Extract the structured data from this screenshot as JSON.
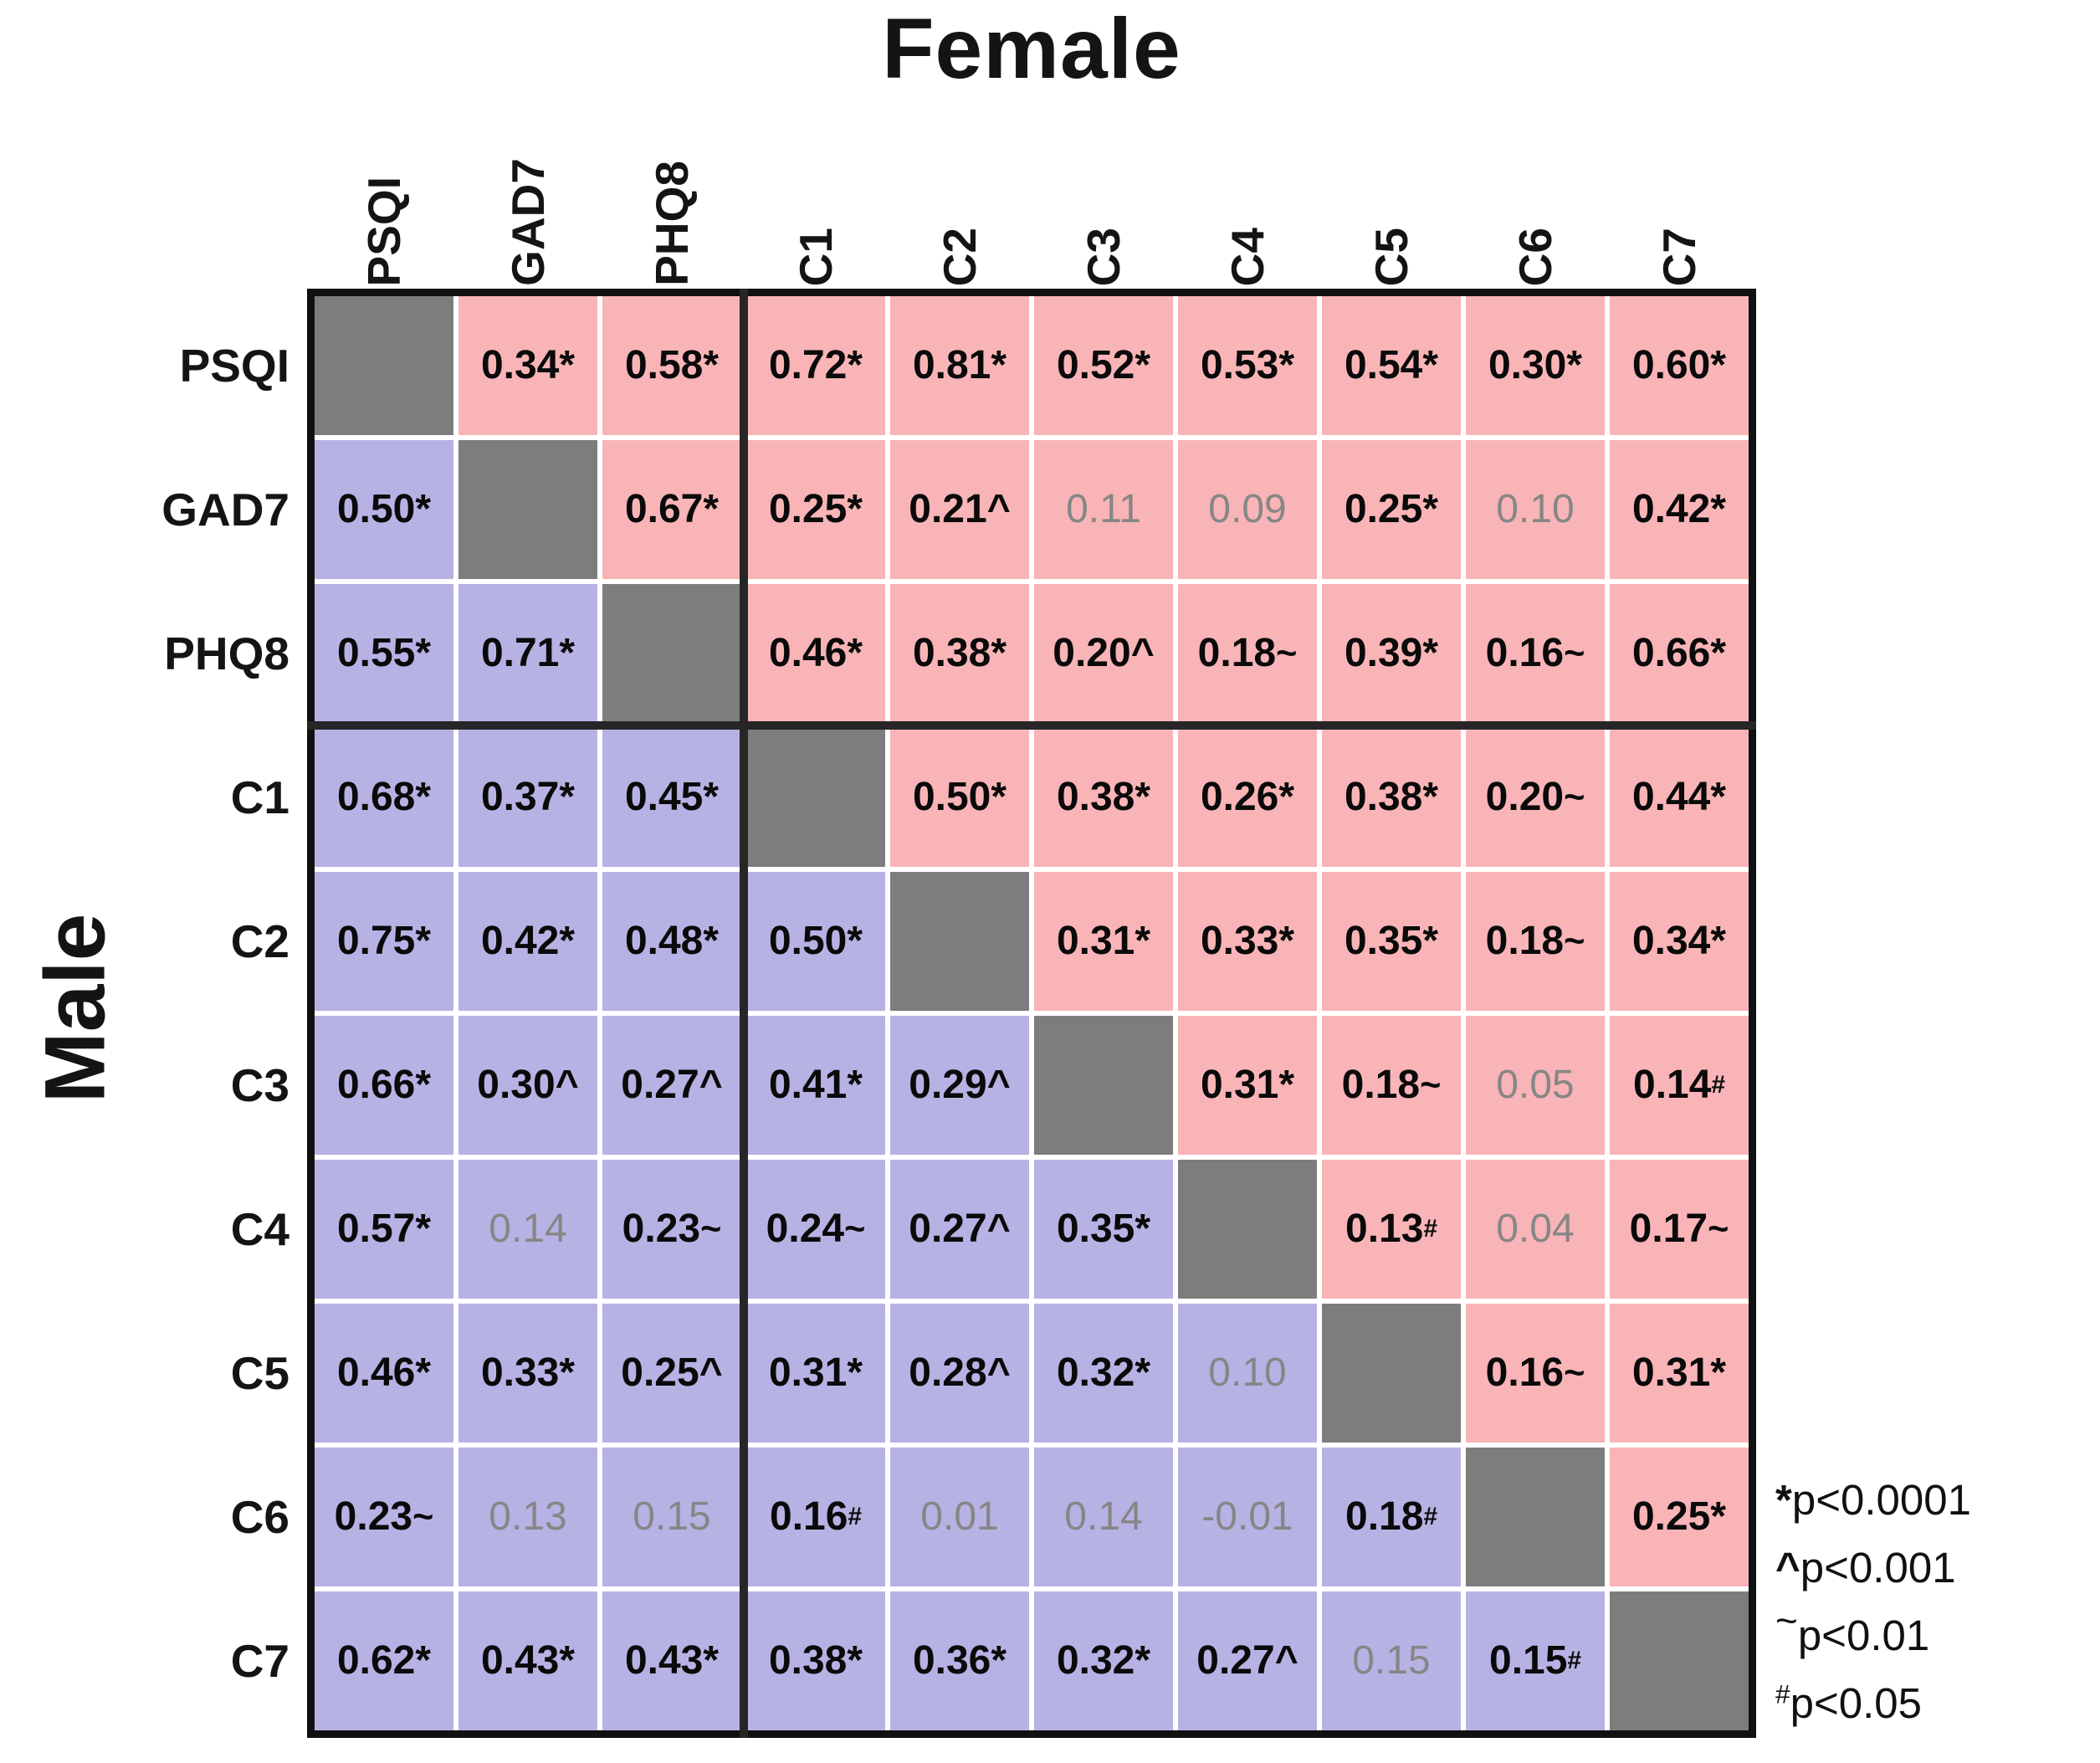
{
  "titles": {
    "top": "Female",
    "left": "Male"
  },
  "colors": {
    "female_cell": "#f8b4b7",
    "male_cell": "#b7b2e4",
    "diagonal_cell": "#7d7d7d",
    "significant_text": "#0a0a0a",
    "nonsignificant_text": "#868686",
    "grid_line": "#ffffff",
    "border": "#111111"
  },
  "legend": {
    "items": [
      {
        "symbol": "*",
        "text": "p<0.0001"
      },
      {
        "symbol": "^",
        "text": "p<0.001"
      },
      {
        "symbol": "~",
        "text": "p<0.01"
      },
      {
        "symbol": "#",
        "text": "p<0.05"
      }
    ]
  },
  "chart_data": {
    "type": "heatmap",
    "title": "Correlation matrix",
    "upper_triangle_group": "Female",
    "lower_triangle_group": "Male",
    "labels": [
      "PSQI",
      "GAD7",
      "PHQ8",
      "C1",
      "C2",
      "C3",
      "C4",
      "C5",
      "C6",
      "C7"
    ],
    "significance_key": {
      "*": "p<0.0001",
      "^": "p<0.001",
      "~": "p<0.01",
      "#": "p<0.05"
    },
    "matrix": [
      [
        null,
        {
          "v": "0.34",
          "s": "*"
        },
        {
          "v": "0.58",
          "s": "*"
        },
        {
          "v": "0.72",
          "s": "*"
        },
        {
          "v": "0.81",
          "s": "*"
        },
        {
          "v": "0.52",
          "s": "*"
        },
        {
          "v": "0.53",
          "s": "*"
        },
        {
          "v": "0.54",
          "s": "*"
        },
        {
          "v": "0.30",
          "s": "*"
        },
        {
          "v": "0.60",
          "s": "*"
        }
      ],
      [
        {
          "v": "0.50",
          "s": "*"
        },
        null,
        {
          "v": "0.67",
          "s": "*"
        },
        {
          "v": "0.25",
          "s": "*"
        },
        {
          "v": "0.21",
          "s": "^"
        },
        {
          "v": "0.11",
          "s": ""
        },
        {
          "v": "0.09",
          "s": ""
        },
        {
          "v": "0.25",
          "s": "*"
        },
        {
          "v": "0.10",
          "s": ""
        },
        {
          "v": "0.42",
          "s": "*"
        }
      ],
      [
        {
          "v": "0.55",
          "s": "*"
        },
        {
          "v": "0.71",
          "s": "*"
        },
        null,
        {
          "v": "0.46",
          "s": "*"
        },
        {
          "v": "0.38",
          "s": "*"
        },
        {
          "v": "0.20",
          "s": "^"
        },
        {
          "v": "0.18",
          "s": "~"
        },
        {
          "v": "0.39",
          "s": "*"
        },
        {
          "v": "0.16",
          "s": "~"
        },
        {
          "v": "0.66",
          "s": "*"
        }
      ],
      [
        {
          "v": "0.68",
          "s": "*"
        },
        {
          "v": "0.37",
          "s": "*"
        },
        {
          "v": "0.45",
          "s": "*"
        },
        null,
        {
          "v": "0.50",
          "s": "*"
        },
        {
          "v": "0.38",
          "s": "*"
        },
        {
          "v": "0.26",
          "s": "*"
        },
        {
          "v": "0.38",
          "s": "*"
        },
        {
          "v": "0.20",
          "s": "~"
        },
        {
          "v": "0.44",
          "s": "*"
        }
      ],
      [
        {
          "v": "0.75",
          "s": "*"
        },
        {
          "v": "0.42",
          "s": "*"
        },
        {
          "v": "0.48",
          "s": "*"
        },
        {
          "v": "0.50",
          "s": "*"
        },
        null,
        {
          "v": "0.31",
          "s": "*"
        },
        {
          "v": "0.33",
          "s": "*"
        },
        {
          "v": "0.35",
          "s": "*"
        },
        {
          "v": "0.18",
          "s": "~"
        },
        {
          "v": "0.34",
          "s": "*"
        }
      ],
      [
        {
          "v": "0.66",
          "s": "*"
        },
        {
          "v": "0.30",
          "s": "^"
        },
        {
          "v": "0.27",
          "s": "^"
        },
        {
          "v": "0.41",
          "s": "*"
        },
        {
          "v": "0.29",
          "s": "^"
        },
        null,
        {
          "v": "0.31",
          "s": "*"
        },
        {
          "v": "0.18",
          "s": "~"
        },
        {
          "v": "0.05",
          "s": ""
        },
        {
          "v": "0.14",
          "s": "#"
        }
      ],
      [
        {
          "v": "0.57",
          "s": "*"
        },
        {
          "v": "0.14",
          "s": ""
        },
        {
          "v": "0.23",
          "s": "~"
        },
        {
          "v": "0.24",
          "s": "~"
        },
        {
          "v": "0.27",
          "s": "^"
        },
        {
          "v": "0.35",
          "s": "*"
        },
        null,
        {
          "v": "0.13",
          "s": "#"
        },
        {
          "v": "0.04",
          "s": ""
        },
        {
          "v": "0.17",
          "s": "~"
        }
      ],
      [
        {
          "v": "0.46",
          "s": "*"
        },
        {
          "v": "0.33",
          "s": "*"
        },
        {
          "v": "0.25",
          "s": "^"
        },
        {
          "v": "0.31",
          "s": "*"
        },
        {
          "v": "0.28",
          "s": "^"
        },
        {
          "v": "0.32",
          "s": "*"
        },
        {
          "v": "0.10",
          "s": ""
        },
        null,
        {
          "v": "0.16",
          "s": "~"
        },
        {
          "v": "0.31",
          "s": "*"
        }
      ],
      [
        {
          "v": "0.23",
          "s": "~"
        },
        {
          "v": "0.13",
          "s": ""
        },
        {
          "v": "0.15",
          "s": ""
        },
        {
          "v": "0.16",
          "s": "#"
        },
        {
          "v": "0.01",
          "s": ""
        },
        {
          "v": "0.14",
          "s": ""
        },
        {
          "v": "-0.01",
          "s": ""
        },
        {
          "v": "0.18",
          "s": "#"
        },
        null,
        {
          "v": "0.25",
          "s": "*"
        }
      ],
      [
        {
          "v": "0.62",
          "s": "*"
        },
        {
          "v": "0.43",
          "s": "*"
        },
        {
          "v": "0.43",
          "s": "*"
        },
        {
          "v": "0.38",
          "s": "*"
        },
        {
          "v": "0.36",
          "s": "*"
        },
        {
          "v": "0.32",
          "s": "*"
        },
        {
          "v": "0.27",
          "s": "^"
        },
        {
          "v": "0.15",
          "s": ""
        },
        {
          "v": "0.15",
          "s": "#"
        },
        null
      ]
    ]
  }
}
